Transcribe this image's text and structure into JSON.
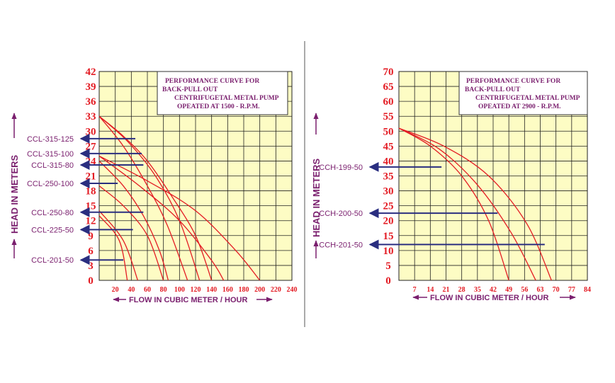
{
  "chart_data": [
    {
      "type": "line",
      "title_lines": [
        "PERFORMANCE CURVE FOR",
        "BACK-PULL OUT",
        "CENTRIFUGETAL  METAL PUMP",
        "OPEATED AT 1500 - R.P.M."
      ],
      "xlabel": "FLOW IN CUBIC METER / HOUR",
      "ylabel": "HEAD IN METERS",
      "xlim": [
        0,
        240
      ],
      "ylim": [
        0,
        42
      ],
      "x_ticks": [
        20,
        40,
        60,
        80,
        100,
        120,
        140,
        160,
        180,
        200,
        220,
        240
      ],
      "y_ticks": [
        0,
        3,
        6,
        9,
        12,
        15,
        18,
        21,
        24,
        27,
        30,
        33,
        36,
        39,
        42
      ],
      "grid": true,
      "series": [
        {
          "points": [
            [
              0,
              33
            ],
            [
              30,
              29
            ],
            [
              60,
              24
            ],
            [
              90,
              17
            ],
            [
              120,
              9
            ],
            [
              140,
              0
            ]
          ]
        },
        {
          "points": [
            [
              0,
              33
            ],
            [
              35,
              28
            ],
            [
              70,
              21
            ],
            [
              100,
              12
            ],
            [
              125,
              0
            ]
          ]
        },
        {
          "points": [
            [
              0,
              33
            ],
            [
              30,
              27
            ],
            [
              60,
              19
            ],
            [
              85,
              11
            ],
            [
              110,
              0
            ]
          ]
        },
        {
          "points": [
            [
              0,
              24
            ],
            [
              30,
              19
            ],
            [
              55,
              13
            ],
            [
              75,
              6
            ],
            [
              86,
              0
            ]
          ]
        },
        {
          "points": [
            [
              0,
              19
            ],
            [
              30,
              15
            ],
            [
              60,
              9
            ],
            [
              80,
              0
            ]
          ]
        },
        {
          "points": [
            [
              0,
              14
            ],
            [
              30,
              8
            ],
            [
              48,
              0
            ]
          ]
        },
        {
          "points": [
            [
              0,
              13
            ],
            [
              25,
              8
            ],
            [
              35,
              0
            ]
          ]
        },
        {
          "points": [
            [
              0,
              25
            ],
            [
              60,
              20
            ],
            [
              120,
              14
            ],
            [
              170,
              6
            ],
            [
              200,
              0
            ]
          ]
        },
        {
          "points": [
            [
              0,
              25
            ],
            [
              50,
              19
            ],
            [
              100,
              12
            ],
            [
              140,
              4
            ],
            [
              155,
              0
            ]
          ]
        }
      ],
      "annotations": [
        {
          "label": "CCL-315-125",
          "y": 28.5,
          "x_end": 45
        },
        {
          "label": "CCL-315-100",
          "y": 25.5,
          "x_end": 53
        },
        {
          "label": "CCL-315-80",
          "y": 23.2,
          "x_end": 55
        },
        {
          "label": "CCL-250-100",
          "y": 19.5,
          "x_end": 23
        },
        {
          "label": "CCL-250-80",
          "y": 13.7,
          "x_end": 55
        },
        {
          "label": "CCL-225-50",
          "y": 10.2,
          "x_end": 42
        },
        {
          "label": "CCL-201-50",
          "y": 4.1,
          "x_end": 30
        }
      ]
    },
    {
      "type": "line",
      "title_lines": [
        "PERFORMANCE CURVE FOR",
        "BACK-PULL OUT",
        "CENTRIFUGETAL  METAL PUMP",
        "OPEATED AT 2900 - R.P.M."
      ],
      "xlabel": "FLOW IN CUBIC METER / HOUR",
      "ylabel": "HEAD IN METERS",
      "xlim": [
        0,
        84
      ],
      "ylim": [
        0,
        70
      ],
      "x_ticks": [
        7,
        14,
        21,
        28,
        35,
        42,
        49,
        56,
        63,
        70,
        77,
        84
      ],
      "y_ticks": [
        0,
        5,
        10,
        15,
        20,
        25,
        30,
        35,
        40,
        45,
        50,
        55,
        60,
        65,
        70
      ],
      "grid": true,
      "series": [
        {
          "points": [
            [
              0,
              51
            ],
            [
              14,
              45
            ],
            [
              28,
              35
            ],
            [
              40,
              20
            ],
            [
              49,
              0
            ]
          ]
        },
        {
          "points": [
            [
              0,
              51
            ],
            [
              18,
              44
            ],
            [
              35,
              32
            ],
            [
              50,
              16
            ],
            [
              61,
              0
            ]
          ]
        },
        {
          "points": [
            [
              0,
              51
            ],
            [
              20,
              45
            ],
            [
              40,
              35
            ],
            [
              57,
              19
            ],
            [
              68,
              0
            ]
          ]
        }
      ],
      "annotations": [
        {
          "label": "CCH-199-50",
          "y": 38,
          "x_end": 19
        },
        {
          "label": "CCH-200-50",
          "y": 22.5,
          "x_end": 44
        },
        {
          "label": "CCH-201-50",
          "y": 12,
          "x_end": 65
        }
      ]
    }
  ]
}
